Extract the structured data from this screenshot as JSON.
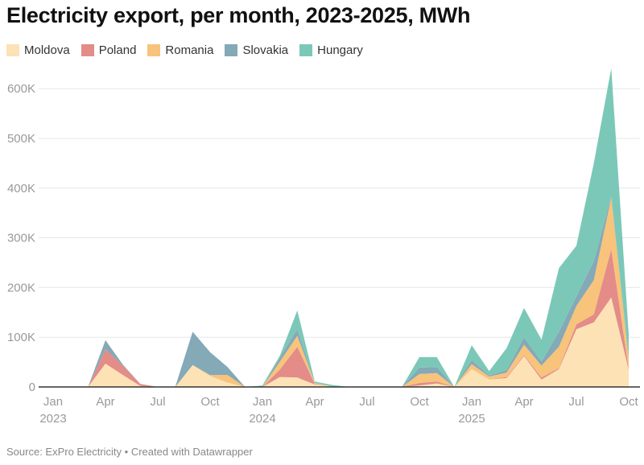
{
  "chart_data": {
    "type": "area",
    "stacked": true,
    "title": "Electricity export, per month, 2023-2025, MWh",
    "source": "Source: ExPro Electricity • Created with Datawrapper",
    "ylim": [
      0,
      650000
    ],
    "yticks": [
      {
        "v": 0,
        "label": "0"
      },
      {
        "v": 100000,
        "label": "100K"
      },
      {
        "v": 200000,
        "label": "200K"
      },
      {
        "v": 300000,
        "label": "300K"
      },
      {
        "v": 400000,
        "label": "400K"
      },
      {
        "v": 500000,
        "label": "500K"
      },
      {
        "v": 600000,
        "label": "600K"
      }
    ],
    "xticks": [
      {
        "i": 0,
        "label": "Jan",
        "year": "2023"
      },
      {
        "i": 3,
        "label": "Apr"
      },
      {
        "i": 6,
        "label": "Jul"
      },
      {
        "i": 9,
        "label": "Oct"
      },
      {
        "i": 12,
        "label": "Jan",
        "year": "2024"
      },
      {
        "i": 15,
        "label": "Apr"
      },
      {
        "i": 18,
        "label": "Jul"
      },
      {
        "i": 21,
        "label": "Oct"
      },
      {
        "i": 24,
        "label": "Jan",
        "year": "2025"
      },
      {
        "i": 27,
        "label": "Apr"
      },
      {
        "i": 30,
        "label": "Jul"
      },
      {
        "i": 33,
        "label": "Oct"
      }
    ],
    "grid": true,
    "legend": "top-left",
    "x": [
      "2023-01",
      "2023-02",
      "2023-03",
      "2023-04",
      "2023-05",
      "2023-06",
      "2023-07",
      "2023-08",
      "2023-09",
      "2023-10",
      "2023-11",
      "2023-12",
      "2024-01",
      "2024-02",
      "2024-03",
      "2024-04",
      "2024-05",
      "2024-06",
      "2024-07",
      "2024-08",
      "2024-09",
      "2024-10",
      "2024-11",
      "2024-12",
      "2025-01",
      "2025-02",
      "2025-03",
      "2025-04",
      "2025-05",
      "2025-06",
      "2025-07",
      "2025-08",
      "2025-09",
      "2025-10"
    ],
    "series": [
      {
        "name": "Moldova",
        "color": "#fde2b6",
        "values": [
          0,
          0,
          0,
          47000,
          24000,
          2000,
          0,
          0,
          44000,
          22000,
          9000,
          0,
          0,
          20000,
          19000,
          5000,
          1000,
          0,
          0,
          0,
          0,
          3000,
          7000,
          0,
          36000,
          15000,
          18000,
          62000,
          15000,
          36000,
          116000,
          130000,
          180000,
          34000
        ]
      },
      {
        "name": "Poland",
        "color": "#e38c88",
        "values": [
          0,
          0,
          0,
          29000,
          19000,
          4000,
          0,
          0,
          0,
          0,
          0,
          0,
          0,
          15000,
          62000,
          1000,
          0,
          0,
          0,
          0,
          0,
          5000,
          4000,
          0,
          0,
          0,
          2000,
          2000,
          4000,
          2000,
          10000,
          16000,
          97000,
          2000
        ]
      },
      {
        "name": "Romania",
        "color": "#f8c37a",
        "values": [
          0,
          0,
          0,
          0,
          0,
          0,
          0,
          0,
          0,
          2000,
          15000,
          0,
          0,
          16000,
          22000,
          2000,
          0,
          0,
          0,
          0,
          0,
          18000,
          17000,
          0,
          10000,
          6000,
          9000,
          21000,
          24000,
          43000,
          37000,
          69000,
          104000,
          20000
        ]
      },
      {
        "name": "Slovakia",
        "color": "#84a9b7",
        "values": [
          0,
          0,
          0,
          18000,
          2000,
          0,
          0,
          0,
          67000,
          46000,
          16000,
          0,
          0,
          8000,
          13000,
          0,
          0,
          0,
          0,
          0,
          0,
          13000,
          12000,
          0,
          8000,
          2000,
          5000,
          15000,
          8000,
          30000,
          19000,
          38000,
          3000,
          5000
        ]
      },
      {
        "name": "Hungary",
        "color": "#7cc8b8",
        "values": [
          0,
          0,
          0,
          0,
          0,
          0,
          0,
          0,
          0,
          0,
          0,
          0,
          3000,
          4000,
          38000,
          3000,
          3000,
          0,
          0,
          0,
          0,
          21000,
          20000,
          0,
          30000,
          9000,
          44000,
          59000,
          44000,
          128000,
          102000,
          197000,
          257000,
          45000
        ]
      }
    ]
  }
}
